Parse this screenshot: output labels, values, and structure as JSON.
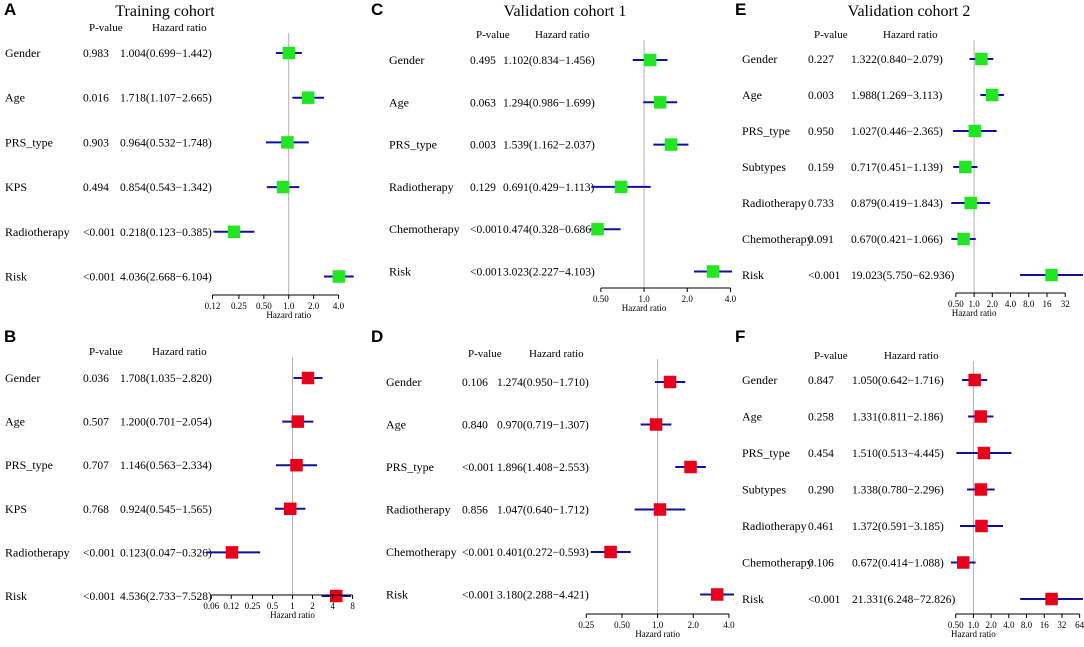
{
  "colors": {
    "green": "#22e622",
    "red": "#e6001a",
    "ci_line": "#1010a0",
    "ref_line": "#b0b0b0"
  },
  "chart_data": [
    {
      "panel": "A",
      "type": "forest",
      "title": "Training cohort",
      "pvalue_header": "P-value",
      "hr_header": "Hazard ratio",
      "xlabel": "Hazard ratio",
      "color": "green",
      "xlim": [
        0.1,
        6.5
      ],
      "ticks": [
        {
          "v": 0.12,
          "label": "0.12"
        },
        {
          "v": 0.25,
          "label": "0.25"
        },
        {
          "v": 0.5,
          "label": "0.50"
        },
        {
          "v": 1,
          "label": "1.0"
        },
        {
          "v": 2,
          "label": "2.0"
        },
        {
          "v": 4,
          "label": "4.0"
        }
      ],
      "rows": [
        {
          "label": "Gender",
          "p": "0.983",
          "hr_text": "1.004(0.699−1.442)",
          "hr": 1.004,
          "lo": 0.699,
          "hi": 1.442
        },
        {
          "label": "Age",
          "p": "0.016",
          "hr_text": "1.718(1.107−2.665)",
          "hr": 1.718,
          "lo": 1.107,
          "hi": 2.665
        },
        {
          "label": "PRS_type",
          "p": "0.903",
          "hr_text": "0.964(0.532−1.748)",
          "hr": 0.964,
          "lo": 0.532,
          "hi": 1.748
        },
        {
          "label": "KPS",
          "p": "0.494",
          "hr_text": "0.854(0.543−1.342)",
          "hr": 0.854,
          "lo": 0.543,
          "hi": 1.342
        },
        {
          "label": "Radiotherapy",
          "p": "<0.001",
          "hr_text": "0.218(0.123−0.385)",
          "hr": 0.218,
          "lo": 0.123,
          "hi": 0.385
        },
        {
          "label": "Risk",
          "p": "<0.001",
          "hr_text": "4.036(2.668−6.104)",
          "hr": 4.036,
          "lo": 2.668,
          "hi": 6.104
        }
      ]
    },
    {
      "panel": "B",
      "type": "forest",
      "title": "",
      "pvalue_header": "P-value",
      "hr_header": "Hazard ratio",
      "xlabel": "Hazard ratio",
      "color": "red",
      "xlim": [
        0.05,
        9
      ],
      "ticks": [
        {
          "v": 0.06,
          "label": "0.06"
        },
        {
          "v": 0.12,
          "label": "0.12"
        },
        {
          "v": 0.25,
          "label": "0.25"
        },
        {
          "v": 0.5,
          "label": "0.5"
        },
        {
          "v": 1,
          "label": "1"
        },
        {
          "v": 2,
          "label": "2"
        },
        {
          "v": 4,
          "label": "4"
        },
        {
          "v": 8,
          "label": "8"
        }
      ],
      "rows": [
        {
          "label": "Gender",
          "p": "0.036",
          "hr_text": "1.708(1.035−2.820)",
          "hr": 1.708,
          "lo": 1.035,
          "hi": 2.82
        },
        {
          "label": "Age",
          "p": "0.507",
          "hr_text": "1.200(0.701−2.054)",
          "hr": 1.2,
          "lo": 0.701,
          "hi": 2.054
        },
        {
          "label": "PRS_type",
          "p": "0.707",
          "hr_text": "1.146(0.563−2.334)",
          "hr": 1.146,
          "lo": 0.563,
          "hi": 2.334
        },
        {
          "label": "KPS",
          "p": "0.768",
          "hr_text": "0.924(0.545−1.565)",
          "hr": 0.924,
          "lo": 0.545,
          "hi": 1.565
        },
        {
          "label": "Radiotherapy",
          "p": "<0.001",
          "hr_text": "0.123(0.047−0.326)",
          "hr": 0.123,
          "lo": 0.047,
          "hi": 0.326
        },
        {
          "label": "Risk",
          "p": "<0.001",
          "hr_text": "4.536(2.733−7.528)",
          "hr": 4.536,
          "lo": 2.733,
          "hi": 7.528
        }
      ]
    },
    {
      "panel": "C",
      "type": "forest",
      "title": "Validation cohort 1",
      "pvalue_header": "P-value",
      "hr_header": "Hazard ratio",
      "xlabel": "Hazard ratio",
      "color": "green",
      "xlim": [
        0.42,
        4.3
      ],
      "ticks": [
        {
          "v": 0.5,
          "label": "0.50"
        },
        {
          "v": 1,
          "label": "1.0"
        },
        {
          "v": 2,
          "label": "2.0"
        },
        {
          "v": 4,
          "label": "4.0"
        }
      ],
      "rows": [
        {
          "label": "Gender",
          "p": "0.495",
          "hr_text": "1.102(0.834−1.456)",
          "hr": 1.102,
          "lo": 0.834,
          "hi": 1.456
        },
        {
          "label": "Age",
          "p": "0.063",
          "hr_text": "1.294(0.986−1.699)",
          "hr": 1.294,
          "lo": 0.986,
          "hi": 1.699
        },
        {
          "label": "PRS_type",
          "p": "0.003",
          "hr_text": "1.539(1.162−2.037)",
          "hr": 1.539,
          "lo": 1.162,
          "hi": 2.037
        },
        {
          "label": "Radiotherapy",
          "p": "0.129",
          "hr_text": "0.691(0.429−1.113)",
          "hr": 0.691,
          "lo": 0.429,
          "hi": 1.113
        },
        {
          "label": "Chemotherapy",
          "p": "<0.001",
          "hr_text": "0.474(0.328−0.686)",
          "hr": 0.474,
          "lo": 0.328,
          "hi": 0.686
        },
        {
          "label": "Risk",
          "p": "<0.001",
          "hr_text": "3.023(2.227−4.103)",
          "hr": 3.023,
          "lo": 2.227,
          "hi": 4.103
        }
      ]
    },
    {
      "panel": "D",
      "type": "forest",
      "title": "",
      "pvalue_header": "P-value",
      "hr_header": "Hazard ratio",
      "xlabel": "Hazard ratio",
      "color": "red",
      "xlim": [
        0.23,
        4.5
      ],
      "ticks": [
        {
          "v": 0.25,
          "label": "0.25"
        },
        {
          "v": 0.5,
          "label": "0.50"
        },
        {
          "v": 1,
          "label": "1.0"
        },
        {
          "v": 2,
          "label": "2.0"
        },
        {
          "v": 4,
          "label": "4.0"
        }
      ],
      "rows": [
        {
          "label": "Gender",
          "p": "0.106",
          "hr_text": "1.274(0.950−1.710)",
          "hr": 1.274,
          "lo": 0.95,
          "hi": 1.71
        },
        {
          "label": "Age",
          "p": "0.840",
          "hr_text": "0.970(0.719−1.307)",
          "hr": 0.97,
          "lo": 0.719,
          "hi": 1.307
        },
        {
          "label": "PRS_type",
          "p": "<0.001",
          "hr_text": "1.896(1.408−2.553)",
          "hr": 1.896,
          "lo": 1.408,
          "hi": 2.553
        },
        {
          "label": "Radiotherapy",
          "p": "0.856",
          "hr_text": "1.047(0.640−1.712)",
          "hr": 1.047,
          "lo": 0.64,
          "hi": 1.712
        },
        {
          "label": "Chemotherapy",
          "p": "<0.001",
          "hr_text": "0.401(0.272−0.593)",
          "hr": 0.401,
          "lo": 0.272,
          "hi": 0.593
        },
        {
          "label": "Risk",
          "p": "<0.001",
          "hr_text": "3.180(2.288−4.421)",
          "hr": 3.18,
          "lo": 2.288,
          "hi": 4.421
        }
      ]
    },
    {
      "panel": "E",
      "type": "forest",
      "title": "Validation cohort 2",
      "pvalue_header": "P-value",
      "hr_header": "Hazard ratio",
      "xlabel": "Hazard ratio",
      "color": "green",
      "xlim": [
        0.4,
        63
      ],
      "ticks": [
        {
          "v": 0.5,
          "label": "0.50"
        },
        {
          "v": 1,
          "label": "1.0"
        },
        {
          "v": 2,
          "label": "2.0"
        },
        {
          "v": 4,
          "label": "4.0"
        },
        {
          "v": 8,
          "label": "8.0"
        },
        {
          "v": 16,
          "label": "16"
        },
        {
          "v": 32,
          "label": "32"
        }
      ],
      "rows": [
        {
          "label": "Gender",
          "p": "0.227",
          "hr_text": "1.322(0.840−2.079)",
          "hr": 1.322,
          "lo": 0.84,
          "hi": 2.079
        },
        {
          "label": "Age",
          "p": "0.003",
          "hr_text": "1.988(1.269−3.113)",
          "hr": 1.988,
          "lo": 1.269,
          "hi": 3.113
        },
        {
          "label": "PRS_type",
          "p": "0.950",
          "hr_text": "1.027(0.446−2.365)",
          "hr": 1.027,
          "lo": 0.446,
          "hi": 2.365
        },
        {
          "label": "Subtypes",
          "p": "0.159",
          "hr_text": "0.717(0.451−1.139)",
          "hr": 0.717,
          "lo": 0.451,
          "hi": 1.139
        },
        {
          "label": "Radiotherapy",
          "p": "0.733",
          "hr_text": "0.879(0.419−1.843)",
          "hr": 0.879,
          "lo": 0.419,
          "hi": 1.843
        },
        {
          "label": "Chemotherapy",
          "p": "0.091",
          "hr_text": "0.670(0.421−1.066)",
          "hr": 0.67,
          "lo": 0.421,
          "hi": 1.066
        },
        {
          "label": "Risk",
          "p": "<0.001",
          "hr_text": "19.023(5.750−62.936)",
          "hr": 19.023,
          "lo": 5.75,
          "hi": 62.936
        }
      ]
    },
    {
      "panel": "F",
      "type": "forest",
      "title": "",
      "pvalue_header": "P-value",
      "hr_header": "Hazard ratio",
      "xlabel": "Hazard ratio",
      "color": "red",
      "xlim": [
        0.4,
        73
      ],
      "ticks": [
        {
          "v": 0.5,
          "label": "0.50"
        },
        {
          "v": 1,
          "label": "1.0"
        },
        {
          "v": 2,
          "label": "2.0"
        },
        {
          "v": 4,
          "label": "4.0"
        },
        {
          "v": 8,
          "label": "8.0"
        },
        {
          "v": 16,
          "label": "16"
        },
        {
          "v": 32,
          "label": "32"
        },
        {
          "v": 64,
          "label": "64"
        }
      ],
      "rows": [
        {
          "label": "Gender",
          "p": "0.847",
          "hr_text": "1.050(0.642−1.716)",
          "hr": 1.05,
          "lo": 0.642,
          "hi": 1.716
        },
        {
          "label": "Age",
          "p": "0.258",
          "hr_text": "1.331(0.811−2.186)",
          "hr": 1.331,
          "lo": 0.811,
          "hi": 2.186
        },
        {
          "label": "PRS_type",
          "p": "0.454",
          "hr_text": "1.510(0.513−4.445)",
          "hr": 1.51,
          "lo": 0.513,
          "hi": 4.445
        },
        {
          "label": "Subtypes",
          "p": "0.290",
          "hr_text": "1.338(0.780−2.296)",
          "hr": 1.338,
          "lo": 0.78,
          "hi": 2.296
        },
        {
          "label": "Radiotherapy",
          "p": "0.461",
          "hr_text": "1.372(0.591−3.185)",
          "hr": 1.372,
          "lo": 0.591,
          "hi": 3.185
        },
        {
          "label": "Chemotherapy",
          "p": "0.106",
          "hr_text": "0.672(0.414−1.088)",
          "hr": 0.672,
          "lo": 0.414,
          "hi": 1.088
        },
        {
          "label": "Risk",
          "p": "<0.001",
          "hr_text": "21.331(6.248−72.826)",
          "hr": 21.331,
          "lo": 6.248,
          "hi": 72.826
        }
      ]
    }
  ]
}
